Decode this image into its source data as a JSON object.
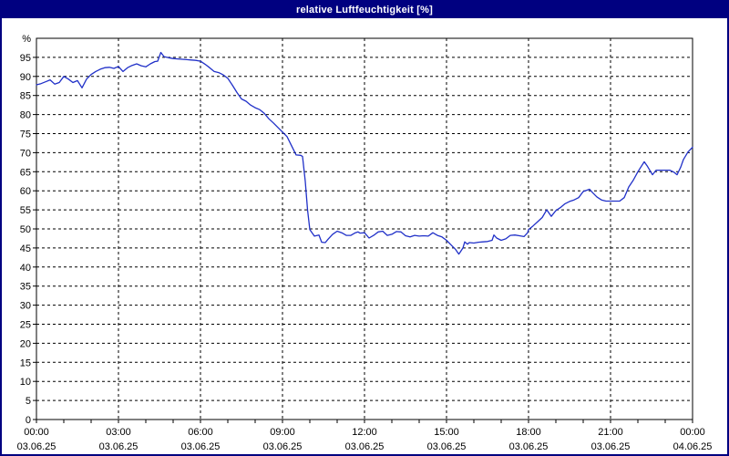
{
  "window": {
    "title": "relative Luftfeuchtigkeit [%]"
  },
  "colors": {
    "frame": "#000080",
    "titlebar_bg": "#000080",
    "titlebar_text": "#ffffff",
    "plot_background": "#ffffff",
    "axis": "#000000",
    "grid": "#000000",
    "tick_label": "#000000",
    "series_line": "#2030c8"
  },
  "chart_data": {
    "type": "line",
    "title": "relative Luftfeuchtigkeit [%]",
    "grid": "dashed",
    "legend": "none",
    "y_axis": {
      "unit_label": "%",
      "ylim": [
        0,
        100
      ],
      "tick_step": 5,
      "tick_labels": [
        0,
        5,
        10,
        15,
        20,
        25,
        30,
        35,
        40,
        45,
        50,
        55,
        60,
        65,
        70,
        75,
        80,
        85,
        90,
        95
      ]
    },
    "x_axis": {
      "xlim_minutes": [
        0,
        1440
      ],
      "minor_tick_every_minutes": 60,
      "major_tick_every_minutes": 180,
      "major_ticks": [
        {
          "minutes": 0,
          "time": "00:00",
          "date": "03.06.25"
        },
        {
          "minutes": 180,
          "time": "03:00",
          "date": "03.06.25"
        },
        {
          "minutes": 360,
          "time": "06:00",
          "date": "03.06.25"
        },
        {
          "minutes": 540,
          "time": "09:00",
          "date": "03.06.25"
        },
        {
          "minutes": 720,
          "time": "12:00",
          "date": "03.06.25"
        },
        {
          "minutes": 900,
          "time": "15:00",
          "date": "03.06.25"
        },
        {
          "minutes": 1080,
          "time": "18:00",
          "date": "03.06.25"
        },
        {
          "minutes": 1260,
          "time": "21:00",
          "date": "03.06.25"
        },
        {
          "minutes": 1440,
          "time": "00:00",
          "date": "04.06.25"
        }
      ]
    },
    "series": [
      {
        "name": "relative Luftfeuchtigkeit [%]",
        "color": "#2030c8",
        "t_minutes": [
          0,
          10,
          20,
          30,
          40,
          50,
          60,
          70,
          80,
          90,
          100,
          110,
          120,
          130,
          140,
          150,
          160,
          170,
          180,
          190,
          200,
          210,
          220,
          230,
          240,
          250,
          260,
          266,
          273,
          280,
          290,
          300,
          310,
          320,
          330,
          340,
          350,
          360,
          370,
          380,
          390,
          400,
          410,
          420,
          430,
          440,
          450,
          460,
          470,
          480,
          490,
          500,
          510,
          520,
          530,
          540,
          550,
          560,
          570,
          580,
          584,
          590,
          595,
          600,
          610,
          620,
          626,
          634,
          640,
          650,
          660,
          670,
          680,
          690,
          700,
          706,
          710,
          720,
          730,
          740,
          750,
          760,
          770,
          780,
          790,
          800,
          810,
          820,
          830,
          840,
          850,
          860,
          870,
          880,
          890,
          900,
          910,
          920,
          927,
          930,
          936,
          940,
          946,
          950,
          960,
          970,
          980,
          990,
          1000,
          1004,
          1010,
          1020,
          1030,
          1040,
          1050,
          1060,
          1070,
          1078,
          1080,
          1090,
          1100,
          1110,
          1120,
          1130,
          1140,
          1150,
          1160,
          1170,
          1180,
          1190,
          1200,
          1214,
          1220,
          1230,
          1240,
          1250,
          1260,
          1270,
          1280,
          1290,
          1300,
          1310,
          1320,
          1334,
          1340,
          1352,
          1360,
          1370,
          1380,
          1390,
          1400,
          1406,
          1414,
          1420,
          1430,
          1440
        ],
        "values": [
          87.8,
          88.1,
          88.6,
          89.1,
          88.0,
          88.4,
          90.0,
          89.3,
          88.4,
          88.9,
          87.0,
          89.3,
          90.5,
          91.3,
          91.9,
          92.3,
          92.4,
          92.1,
          92.6,
          91.3,
          92.3,
          92.9,
          93.3,
          92.8,
          92.5,
          93.3,
          93.9,
          94.0,
          96.3,
          95.2,
          94.9,
          94.7,
          94.6,
          94.5,
          94.4,
          94.3,
          94.2,
          94.0,
          93.2,
          92.3,
          91.3,
          91.0,
          90.4,
          89.5,
          87.7,
          85.8,
          84.1,
          83.5,
          82.5,
          81.8,
          81.3,
          80.3,
          78.9,
          77.8,
          76.6,
          75.4,
          74.2,
          71.8,
          69.4,
          69.3,
          69.0,
          62.5,
          55.0,
          49.8,
          48.1,
          48.4,
          46.5,
          46.4,
          47.3,
          48.6,
          49.4,
          49.0,
          48.3,
          48.3,
          49.0,
          49.2,
          48.9,
          49.0,
          47.6,
          48.3,
          49.2,
          49.4,
          48.3,
          48.6,
          49.3,
          49.2,
          48.2,
          47.9,
          48.3,
          48.1,
          48.2,
          48.1,
          49.0,
          48.3,
          47.9,
          47.0,
          45.8,
          44.6,
          43.4,
          43.9,
          45.0,
          46.6,
          46.0,
          46.4,
          46.3,
          46.5,
          46.6,
          46.7,
          47.0,
          48.4,
          47.6,
          47.0,
          47.4,
          48.3,
          48.4,
          48.2,
          48.0,
          49.0,
          49.8,
          50.8,
          51.9,
          53.0,
          55.0,
          53.3,
          54.8,
          55.6,
          56.6,
          57.2,
          57.6,
          58.2,
          59.8,
          60.4,
          59.6,
          58.4,
          57.6,
          57.3,
          57.3,
          57.3,
          57.3,
          58.2,
          61.0,
          62.8,
          65.0,
          67.6,
          66.6,
          64.2,
          65.4,
          65.4,
          65.4,
          65.4,
          64.8,
          64.2,
          66.2,
          68.2,
          70.2,
          71.4
        ]
      }
    ]
  }
}
